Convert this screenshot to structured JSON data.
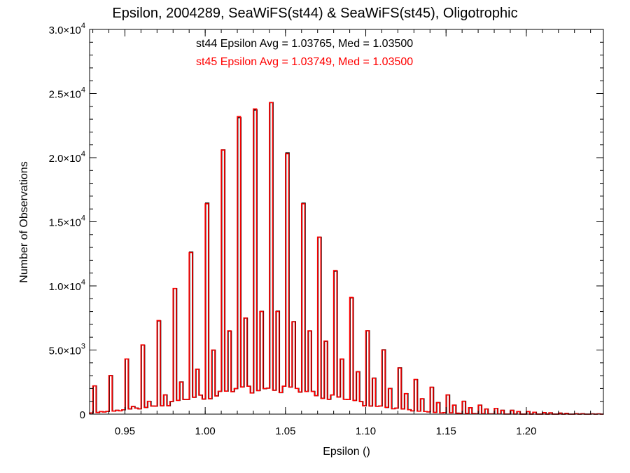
{
  "chart_data": {
    "type": "histogram",
    "title": "Epsilon, 2004289, SeaWiFS(st44) & SeaWiFS(st45), Oligotrophic",
    "xlabel": "Epsilon ()",
    "ylabel": "Number of Observations",
    "xlim": [
      0.928,
      1.248
    ],
    "ylim": [
      0,
      30000
    ],
    "bin_width": 0.002,
    "x_ticks": [
      0.95,
      1.0,
      1.05,
      1.1,
      1.15,
      1.2
    ],
    "x_tick_labels": [
      "0.95",
      "1.00",
      "1.05",
      "1.10",
      "1.15",
      "1.20"
    ],
    "y_ticks": [
      0,
      5000,
      10000,
      15000,
      20000,
      25000,
      30000
    ],
    "y_tick_labels": [
      {
        "mant": "0",
        "exp": ""
      },
      {
        "mant": "5.0×10",
        "exp": "3"
      },
      {
        "mant": "1.0×10",
        "exp": "4"
      },
      {
        "mant": "1.5×10",
        "exp": "4"
      },
      {
        "mant": "2.0×10",
        "exp": "4"
      },
      {
        "mant": "2.5×10",
        "exp": "4"
      },
      {
        "mant": "3.0×10",
        "exp": "4"
      }
    ],
    "series": [
      {
        "name": "st44",
        "color": "#000000",
        "stat_text": "st44 Epsilon Avg = 1.03765, Med = 1.03500"
      },
      {
        "name": "st45",
        "color": "#ff0000",
        "stat_text": "st45 Epsilon Avg = 1.03749, Med = 1.03500"
      }
    ],
    "peaks": [
      {
        "x": 0.93,
        "y": 2200
      },
      {
        "x": 0.94,
        "y": 3000
      },
      {
        "x": 0.95,
        "y": 4300
      },
      {
        "x": 0.96,
        "y": 5400
      },
      {
        "x": 0.97,
        "y": 7300
      },
      {
        "x": 0.98,
        "y": 9800
      },
      {
        "x": 0.99,
        "y": 12600
      },
      {
        "x": 1.0,
        "y": 16400
      },
      {
        "x": 1.01,
        "y": 20600
      },
      {
        "x": 1.02,
        "y": 23200
      },
      {
        "x": 1.03,
        "y": 23800
      },
      {
        "x": 1.04,
        "y": 24300
      },
      {
        "x": 1.05,
        "y": 20300
      },
      {
        "x": 1.06,
        "y": 16400
      },
      {
        "x": 1.07,
        "y": 13800
      },
      {
        "x": 1.08,
        "y": 11200
      },
      {
        "x": 1.09,
        "y": 9100
      },
      {
        "x": 1.1,
        "y": 6500
      },
      {
        "x": 1.11,
        "y": 5000
      },
      {
        "x": 1.12,
        "y": 3600
      },
      {
        "x": 1.13,
        "y": 2700
      },
      {
        "x": 1.14,
        "y": 2100
      },
      {
        "x": 1.15,
        "y": 1500
      },
      {
        "x": 1.16,
        "y": 1000
      },
      {
        "x": 1.17,
        "y": 700
      },
      {
        "x": 1.18,
        "y": 450
      },
      {
        "x": 1.19,
        "y": 300
      },
      {
        "x": 1.2,
        "y": 200
      },
      {
        "x": 1.21,
        "y": 120
      },
      {
        "x": 1.22,
        "y": 80
      },
      {
        "x": 1.23,
        "y": 40
      },
      {
        "x": 1.24,
        "y": 20
      }
    ],
    "secondary_peaks": [
      {
        "x": 0.935,
        "y": 200
      },
      {
        "x": 0.945,
        "y": 300
      },
      {
        "x": 0.955,
        "y": 600
      },
      {
        "x": 0.965,
        "y": 1000
      },
      {
        "x": 0.975,
        "y": 1500
      },
      {
        "x": 0.985,
        "y": 2500
      },
      {
        "x": 0.995,
        "y": 3500
      },
      {
        "x": 1.005,
        "y": 5000
      },
      {
        "x": 1.015,
        "y": 6500
      },
      {
        "x": 1.025,
        "y": 7500
      },
      {
        "x": 1.035,
        "y": 8000
      },
      {
        "x": 1.045,
        "y": 8000
      },
      {
        "x": 1.055,
        "y": 7200
      },
      {
        "x": 1.065,
        "y": 6500
      },
      {
        "x": 1.075,
        "y": 5700
      },
      {
        "x": 1.085,
        "y": 4300
      },
      {
        "x": 1.095,
        "y": 3300
      },
      {
        "x": 1.105,
        "y": 2800
      },
      {
        "x": 1.115,
        "y": 2000
      },
      {
        "x": 1.125,
        "y": 1600
      },
      {
        "x": 1.135,
        "y": 1200
      },
      {
        "x": 1.145,
        "y": 900
      },
      {
        "x": 1.155,
        "y": 700
      },
      {
        "x": 1.165,
        "y": 500
      },
      {
        "x": 1.175,
        "y": 400
      },
      {
        "x": 1.185,
        "y": 300
      },
      {
        "x": 1.195,
        "y": 200
      },
      {
        "x": 1.205,
        "y": 150
      },
      {
        "x": 1.215,
        "y": 100
      },
      {
        "x": 1.225,
        "y": 60
      },
      {
        "x": 1.235,
        "y": 30
      },
      {
        "x": 1.245,
        "y": 20
      }
    ],
    "background": {
      "center": 1.038,
      "amplitude": 1900,
      "sigma": 0.046
    }
  }
}
